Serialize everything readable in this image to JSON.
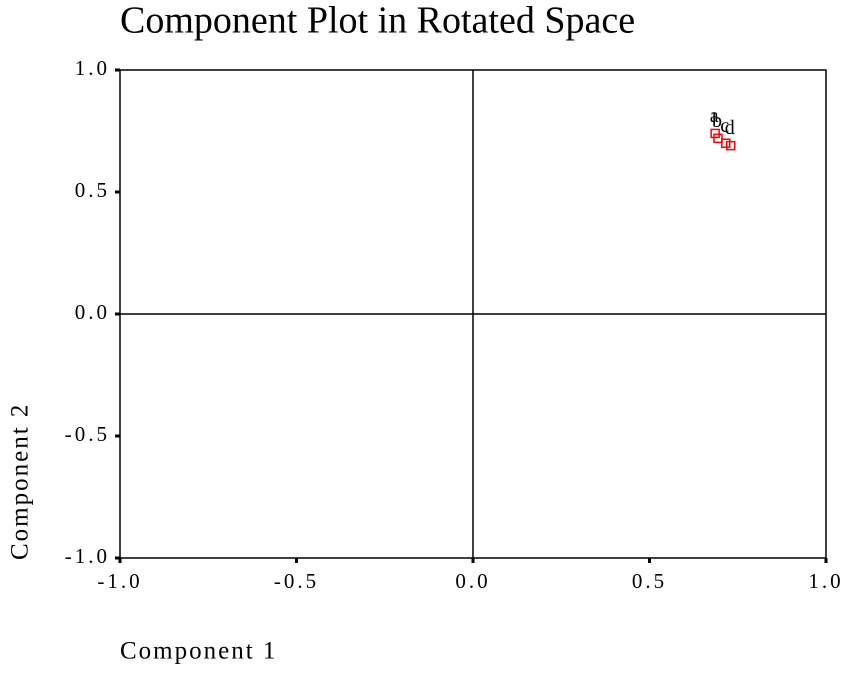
{
  "chart_data": {
    "type": "scatter",
    "title": "Component Plot in Rotated Space",
    "xlabel": "Component 1",
    "ylabel": "Component 2",
    "x": [
      0.686,
      0.694,
      0.716,
      0.73
    ],
    "values": [
      0.74,
      0.72,
      0.7,
      0.69
    ],
    "point_labels": [
      "a",
      "b",
      "c",
      "d"
    ],
    "color": "#ff0000",
    "xlim": [
      -1,
      1
    ],
    "ylim": [
      -1,
      1
    ],
    "xticks": [
      {
        "value": -1,
        "label": "-1.0"
      },
      {
        "value": -0.5,
        "label": "-0.5"
      },
      {
        "value": 0,
        "label": "0.0"
      },
      0.5,
      {
        "value": 1,
        "label": "1.0"
      }
    ],
    "yticks": [
      {
        "value": -1,
        "label": "-1.0"
      },
      {
        "value": -0.5,
        "label": "-0.5"
      },
      {
        "value": 0,
        "label": "0.0"
      },
      0.5,
      {
        "value": 1,
        "label": "1.0"
      }
    ],
    "zero_lines": true
  }
}
